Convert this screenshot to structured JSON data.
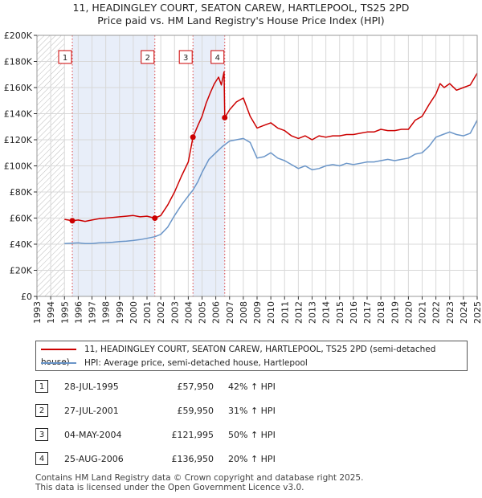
{
  "header": {
    "title_line1": "11, HEADINGLEY COURT, SEATON CAREW, HARTLEPOOL, TS25 2PD",
    "title_line2": "Price paid vs. HM Land Registry's House Price Index (HPI)"
  },
  "colors": {
    "property": "#cc0000",
    "hpi": "#6a95c8",
    "shade": "#e8eef9",
    "grid": "#d8d8d8",
    "axis": "#333333"
  },
  "legend": {
    "property_label": "11, HEADINGLEY COURT, SEATON CAREW, HARTLEPOOL, TS25 2PD (semi-detached house)",
    "hpi_label": "HPI: Average price, semi-detached house, Hartlepool"
  },
  "sales": [
    {
      "num": "1",
      "date": "28-JUL-1995",
      "price": "£57,950",
      "hpi": "42% ↑ HPI"
    },
    {
      "num": "2",
      "date": "27-JUL-2001",
      "price": "£59,950",
      "hpi": "31% ↑ HPI"
    },
    {
      "num": "3",
      "date": "04-MAY-2004",
      "price": "£121,995",
      "hpi": "50% ↑ HPI"
    },
    {
      "num": "4",
      "date": "25-AUG-2006",
      "price": "£136,950",
      "hpi": "20% ↑ HPI"
    }
  ],
  "footer": {
    "line1": "Contains HM Land Registry data © Crown copyright and database right 2025.",
    "line2": "This data is licensed under the Open Government Licence v3.0."
  },
  "chart_data": {
    "type": "line",
    "title": "Price paid vs. HM Land Registry's House Price Index (HPI)",
    "xlabel": "",
    "ylabel": "",
    "xlim": [
      1993,
      2025
    ],
    "ylim": [
      0,
      200000
    ],
    "x_ticks": [
      "1993",
      "1994",
      "1995",
      "1996",
      "1997",
      "1998",
      "1999",
      "2000",
      "2001",
      "2002",
      "2003",
      "2004",
      "2005",
      "2006",
      "2007",
      "2008",
      "2009",
      "2010",
      "2011",
      "2012",
      "2013",
      "2014",
      "2015",
      "2016",
      "2017",
      "2018",
      "2019",
      "2020",
      "2021",
      "2022",
      "2023",
      "2024",
      "2025"
    ],
    "y_ticks": [
      {
        "value": 0,
        "label": "£0"
      },
      {
        "value": 20000,
        "label": "£20K"
      },
      {
        "value": 40000,
        "label": "£40K"
      },
      {
        "value": 60000,
        "label": "£60K"
      },
      {
        "value": 80000,
        "label": "£80K"
      },
      {
        "value": 100000,
        "label": "£100K"
      },
      {
        "value": 120000,
        "label": "£120K"
      },
      {
        "value": 140000,
        "label": "£140K"
      },
      {
        "value": 160000,
        "label": "£160K"
      },
      {
        "value": 180000,
        "label": "£180K"
      },
      {
        "value": 200000,
        "label": "£200K"
      }
    ],
    "grid": true,
    "hatched_before": 1995.0,
    "shaded_periods": [
      [
        1995.57,
        2001.57
      ],
      [
        2004.34,
        2006.65
      ]
    ],
    "series": [
      {
        "name": "11, HEADINGLEY COURT, SEATON CAREW, HARTLEPOOL, TS25 2PD (semi-detached house)",
        "color": "#cc0000",
        "x": [
          1995.0,
          1995.57,
          1996.0,
          1996.5,
          1997.0,
          1997.5,
          1998.0,
          1998.5,
          1999.0,
          1999.5,
          2000.0,
          2000.5,
          2001.0,
          2001.57,
          2002.0,
          2002.5,
          2003.0,
          2003.5,
          2004.0,
          2004.34,
          2004.7,
          2005.0,
          2005.3,
          2005.6,
          2005.9,
          2006.2,
          2006.4,
          2006.6,
          2006.65,
          2007.0,
          2007.5,
          2008.0,
          2008.5,
          2009.0,
          2009.5,
          2010.0,
          2010.5,
          2011.0,
          2011.5,
          2012.0,
          2012.5,
          2013.0,
          2013.5,
          2014.0,
          2014.5,
          2015.0,
          2015.5,
          2016.0,
          2016.5,
          2017.0,
          2017.5,
          2018.0,
          2018.5,
          2019.0,
          2019.5,
          2020.0,
          2020.5,
          2021.0,
          2021.5,
          2022.0,
          2022.3,
          2022.6,
          2023.0,
          2023.5,
          2024.0,
          2024.5,
          2025.0
        ],
        "y": [
          59000,
          57950,
          58500,
          57500,
          58500,
          59500,
          60000,
          60500,
          61000,
          61500,
          62000,
          61000,
          61500,
          59950,
          62000,
          70000,
          80000,
          92000,
          103000,
          121995,
          131000,
          138000,
          148000,
          156000,
          163000,
          168000,
          162000,
          172000,
          136950,
          143000,
          149000,
          152000,
          138000,
          129000,
          131000,
          133000,
          129000,
          127000,
          123000,
          121000,
          123000,
          120000,
          123000,
          122000,
          123000,
          123000,
          124000,
          124000,
          125000,
          126000,
          126000,
          128000,
          127000,
          127000,
          128000,
          128000,
          135000,
          138000,
          147000,
          155000,
          163000,
          160000,
          163000,
          158000,
          160000,
          162000,
          171000
        ]
      },
      {
        "name": "HPI: Average price, semi-detached house, Hartlepool",
        "color": "#6a95c8",
        "x": [
          1995.0,
          1995.57,
          1996.0,
          1996.5,
          1997.0,
          1997.5,
          1998.0,
          1998.5,
          1999.0,
          1999.5,
          2000.0,
          2000.5,
          2001.0,
          2001.57,
          2002.0,
          2002.5,
          2003.0,
          2003.5,
          2004.0,
          2004.34,
          2004.7,
          2005.0,
          2005.5,
          2006.0,
          2006.5,
          2007.0,
          2007.5,
          2008.0,
          2008.5,
          2009.0,
          2009.5,
          2010.0,
          2010.5,
          2011.0,
          2011.5,
          2012.0,
          2012.5,
          2013.0,
          2013.5,
          2014.0,
          2014.5,
          2015.0,
          2015.5,
          2016.0,
          2016.5,
          2017.0,
          2017.5,
          2018.0,
          2018.5,
          2019.0,
          2019.5,
          2020.0,
          2020.5,
          2021.0,
          2021.5,
          2022.0,
          2022.5,
          2023.0,
          2023.5,
          2024.0,
          2024.5,
          2025.0
        ],
        "y": [
          40500,
          40800,
          41000,
          40500,
          40500,
          41000,
          41200,
          41500,
          42000,
          42300,
          42800,
          43500,
          44500,
          45700,
          47500,
          53000,
          62000,
          70000,
          77000,
          81500,
          88000,
          95000,
          105000,
          110000,
          115000,
          119000,
          120000,
          121000,
          118000,
          106000,
          107000,
          110000,
          106000,
          104000,
          101000,
          98000,
          100000,
          97000,
          98000,
          100000,
          101000,
          100000,
          102000,
          101000,
          102000,
          103000,
          103000,
          104000,
          105000,
          104000,
          105000,
          106000,
          109000,
          110000,
          115000,
          122000,
          124000,
          126000,
          124000,
          123000,
          125000,
          135000
        ]
      }
    ],
    "sale_markers": [
      {
        "label": "1",
        "x": 1995.57,
        "y": 57950
      },
      {
        "label": "2",
        "x": 2001.57,
        "y": 59950
      },
      {
        "label": "3",
        "x": 2004.34,
        "y": 121995
      },
      {
        "label": "4",
        "x": 2006.65,
        "y": 136950
      }
    ]
  }
}
